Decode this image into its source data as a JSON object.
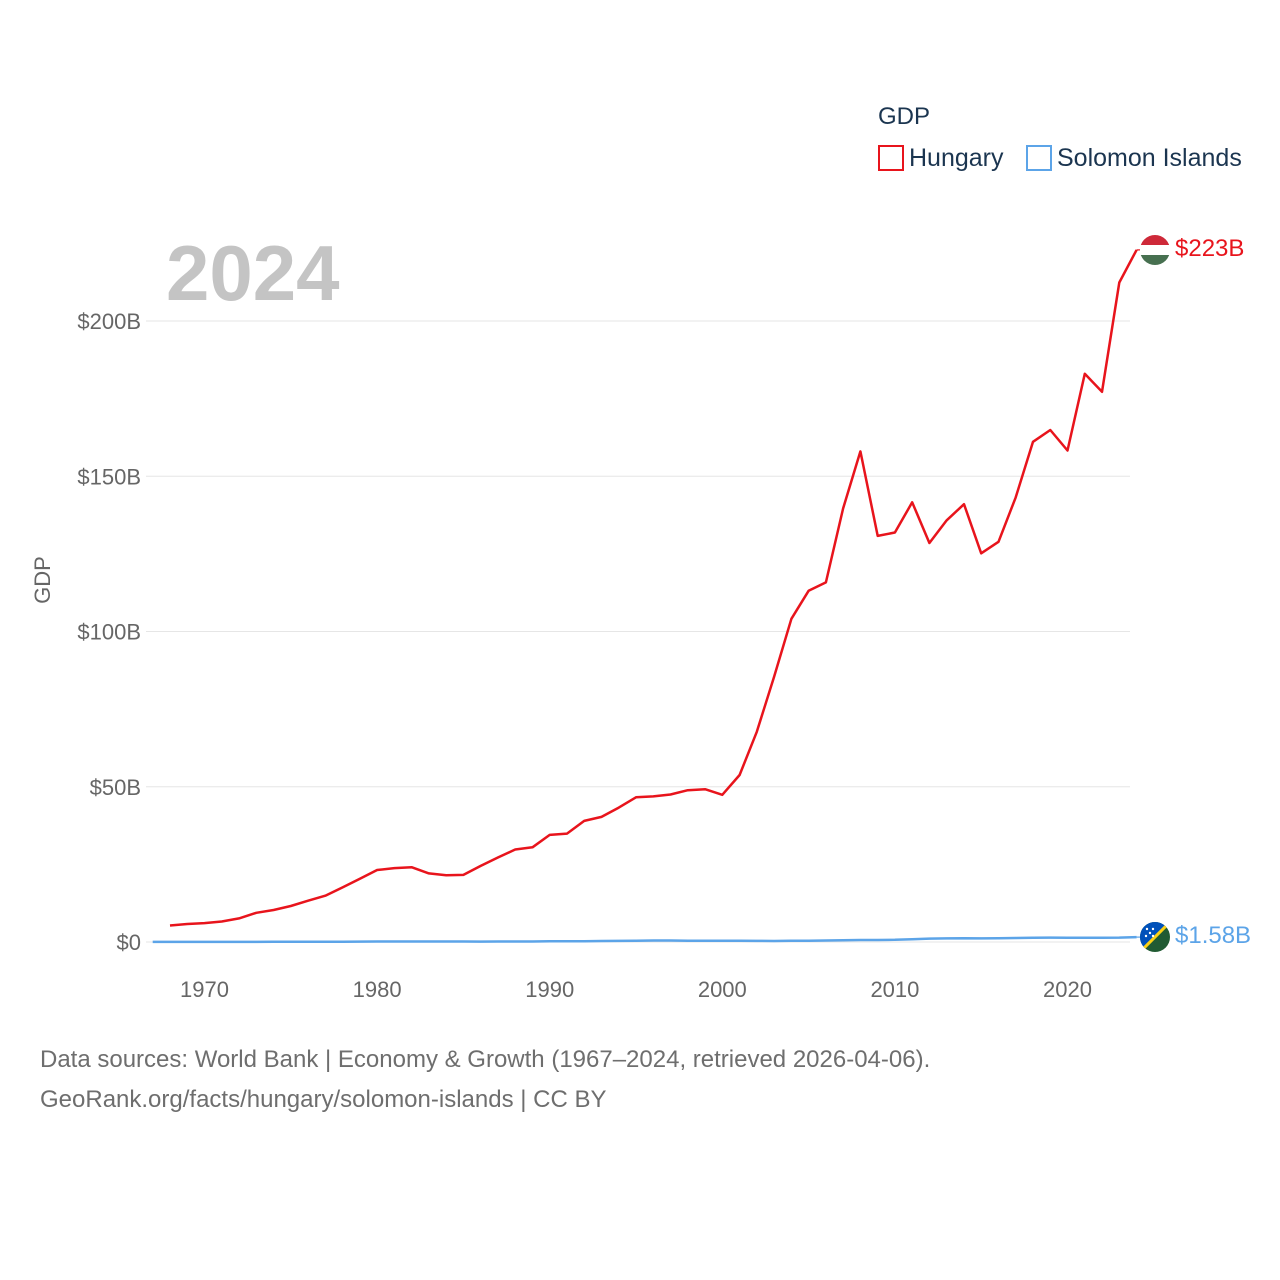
{
  "chart_data": {
    "type": "line",
    "title": "GDP",
    "year_label": "2024",
    "ylabel": "GDP",
    "xlabel": "",
    "xlim": [
      1967,
      2024
    ],
    "ylim": [
      0,
      225
    ],
    "y_unit": "B USD",
    "yticks": [
      {
        "value": 0,
        "label": "$0"
      },
      {
        "value": 50,
        "label": "$50B"
      },
      {
        "value": 100,
        "label": "$100B"
      },
      {
        "value": 150,
        "label": "$150B"
      },
      {
        "value": 200,
        "label": "$200B"
      }
    ],
    "xticks": [
      {
        "value": 1970,
        "label": "1970"
      },
      {
        "value": 1980,
        "label": "1980"
      },
      {
        "value": 1990,
        "label": "1990"
      },
      {
        "value": 2000,
        "label": "2000"
      },
      {
        "value": 2010,
        "label": "2010"
      },
      {
        "value": 2020,
        "label": "2020"
      }
    ],
    "legend_position": "top-right",
    "series": [
      {
        "name": "Hungary",
        "color": "#e8141c",
        "end_label": "$223B",
        "flag": "hungary-flag",
        "x": [
          1968,
          1969,
          1970,
          1971,
          1972,
          1973,
          1974,
          1975,
          1976,
          1977,
          1978,
          1979,
          1980,
          1981,
          1982,
          1983,
          1984,
          1985,
          1986,
          1987,
          1988,
          1989,
          1990,
          1991,
          1992,
          1993,
          1994,
          1995,
          1996,
          1997,
          1998,
          1999,
          2000,
          2001,
          2002,
          2003,
          2004,
          2005,
          2006,
          2007,
          2008,
          2009,
          2010,
          2011,
          2012,
          2013,
          2014,
          2015,
          2016,
          2017,
          2018,
          2019,
          2020,
          2021,
          2022,
          2023,
          2024
        ],
        "values": [
          5.3,
          5.8,
          6.1,
          6.6,
          7.6,
          9.4,
          10.3,
          11.6,
          13.3,
          14.9,
          17.6,
          20.4,
          23.2,
          23.8,
          24.1,
          22.1,
          21.5,
          21.6,
          24.5,
          27.2,
          29.8,
          30.5,
          34.5,
          34.9,
          39.0,
          40.3,
          43.3,
          46.6,
          46.9,
          47.5,
          48.9,
          49.2,
          47.4,
          53.8,
          67.7,
          85.4,
          104.1,
          113.1,
          115.8,
          139.6,
          158.0,
          130.8,
          131.9,
          141.6,
          128.5,
          135.8,
          141.0,
          125.2,
          128.9,
          143.2,
          161.1,
          164.9,
          158.3,
          183.0,
          177.2,
          212.4,
          222.9
        ]
      },
      {
        "name": "Solomon Islands",
        "color": "#5ca4e8",
        "end_label": "$1.58B",
        "flag": "solomon-islands-flag",
        "x": [
          1967,
          1968,
          1969,
          1970,
          1971,
          1972,
          1973,
          1974,
          1975,
          1976,
          1977,
          1978,
          1979,
          1980,
          1981,
          1982,
          1983,
          1984,
          1985,
          1986,
          1987,
          1988,
          1989,
          1990,
          1991,
          1992,
          1993,
          1994,
          1995,
          1996,
          1997,
          1998,
          1999,
          2000,
          2001,
          2002,
          2003,
          2004,
          2005,
          2006,
          2007,
          2008,
          2009,
          2010,
          2011,
          2012,
          2013,
          2014,
          2015,
          2016,
          2017,
          2018,
          2019,
          2020,
          2021,
          2022,
          2023,
          2024
        ],
        "values": [
          0.03,
          0.03,
          0.03,
          0.03,
          0.03,
          0.04,
          0.04,
          0.06,
          0.06,
          0.06,
          0.08,
          0.1,
          0.13,
          0.15,
          0.16,
          0.16,
          0.16,
          0.16,
          0.15,
          0.14,
          0.15,
          0.17,
          0.16,
          0.21,
          0.24,
          0.27,
          0.32,
          0.36,
          0.42,
          0.47,
          0.49,
          0.42,
          0.42,
          0.43,
          0.41,
          0.34,
          0.33,
          0.38,
          0.42,
          0.49,
          0.59,
          0.66,
          0.63,
          0.72,
          0.91,
          1.09,
          1.17,
          1.22,
          1.17,
          1.2,
          1.28,
          1.39,
          1.43,
          1.36,
          1.38,
          1.37,
          1.43,
          1.58
        ]
      }
    ]
  },
  "footer": {
    "line1": "Data sources: World Bank | Economy & Growth (1967–2024, retrieved 2026-04-06).",
    "line2": "GeoRank.org/facts/hungary/solomon-islands | CC BY"
  }
}
